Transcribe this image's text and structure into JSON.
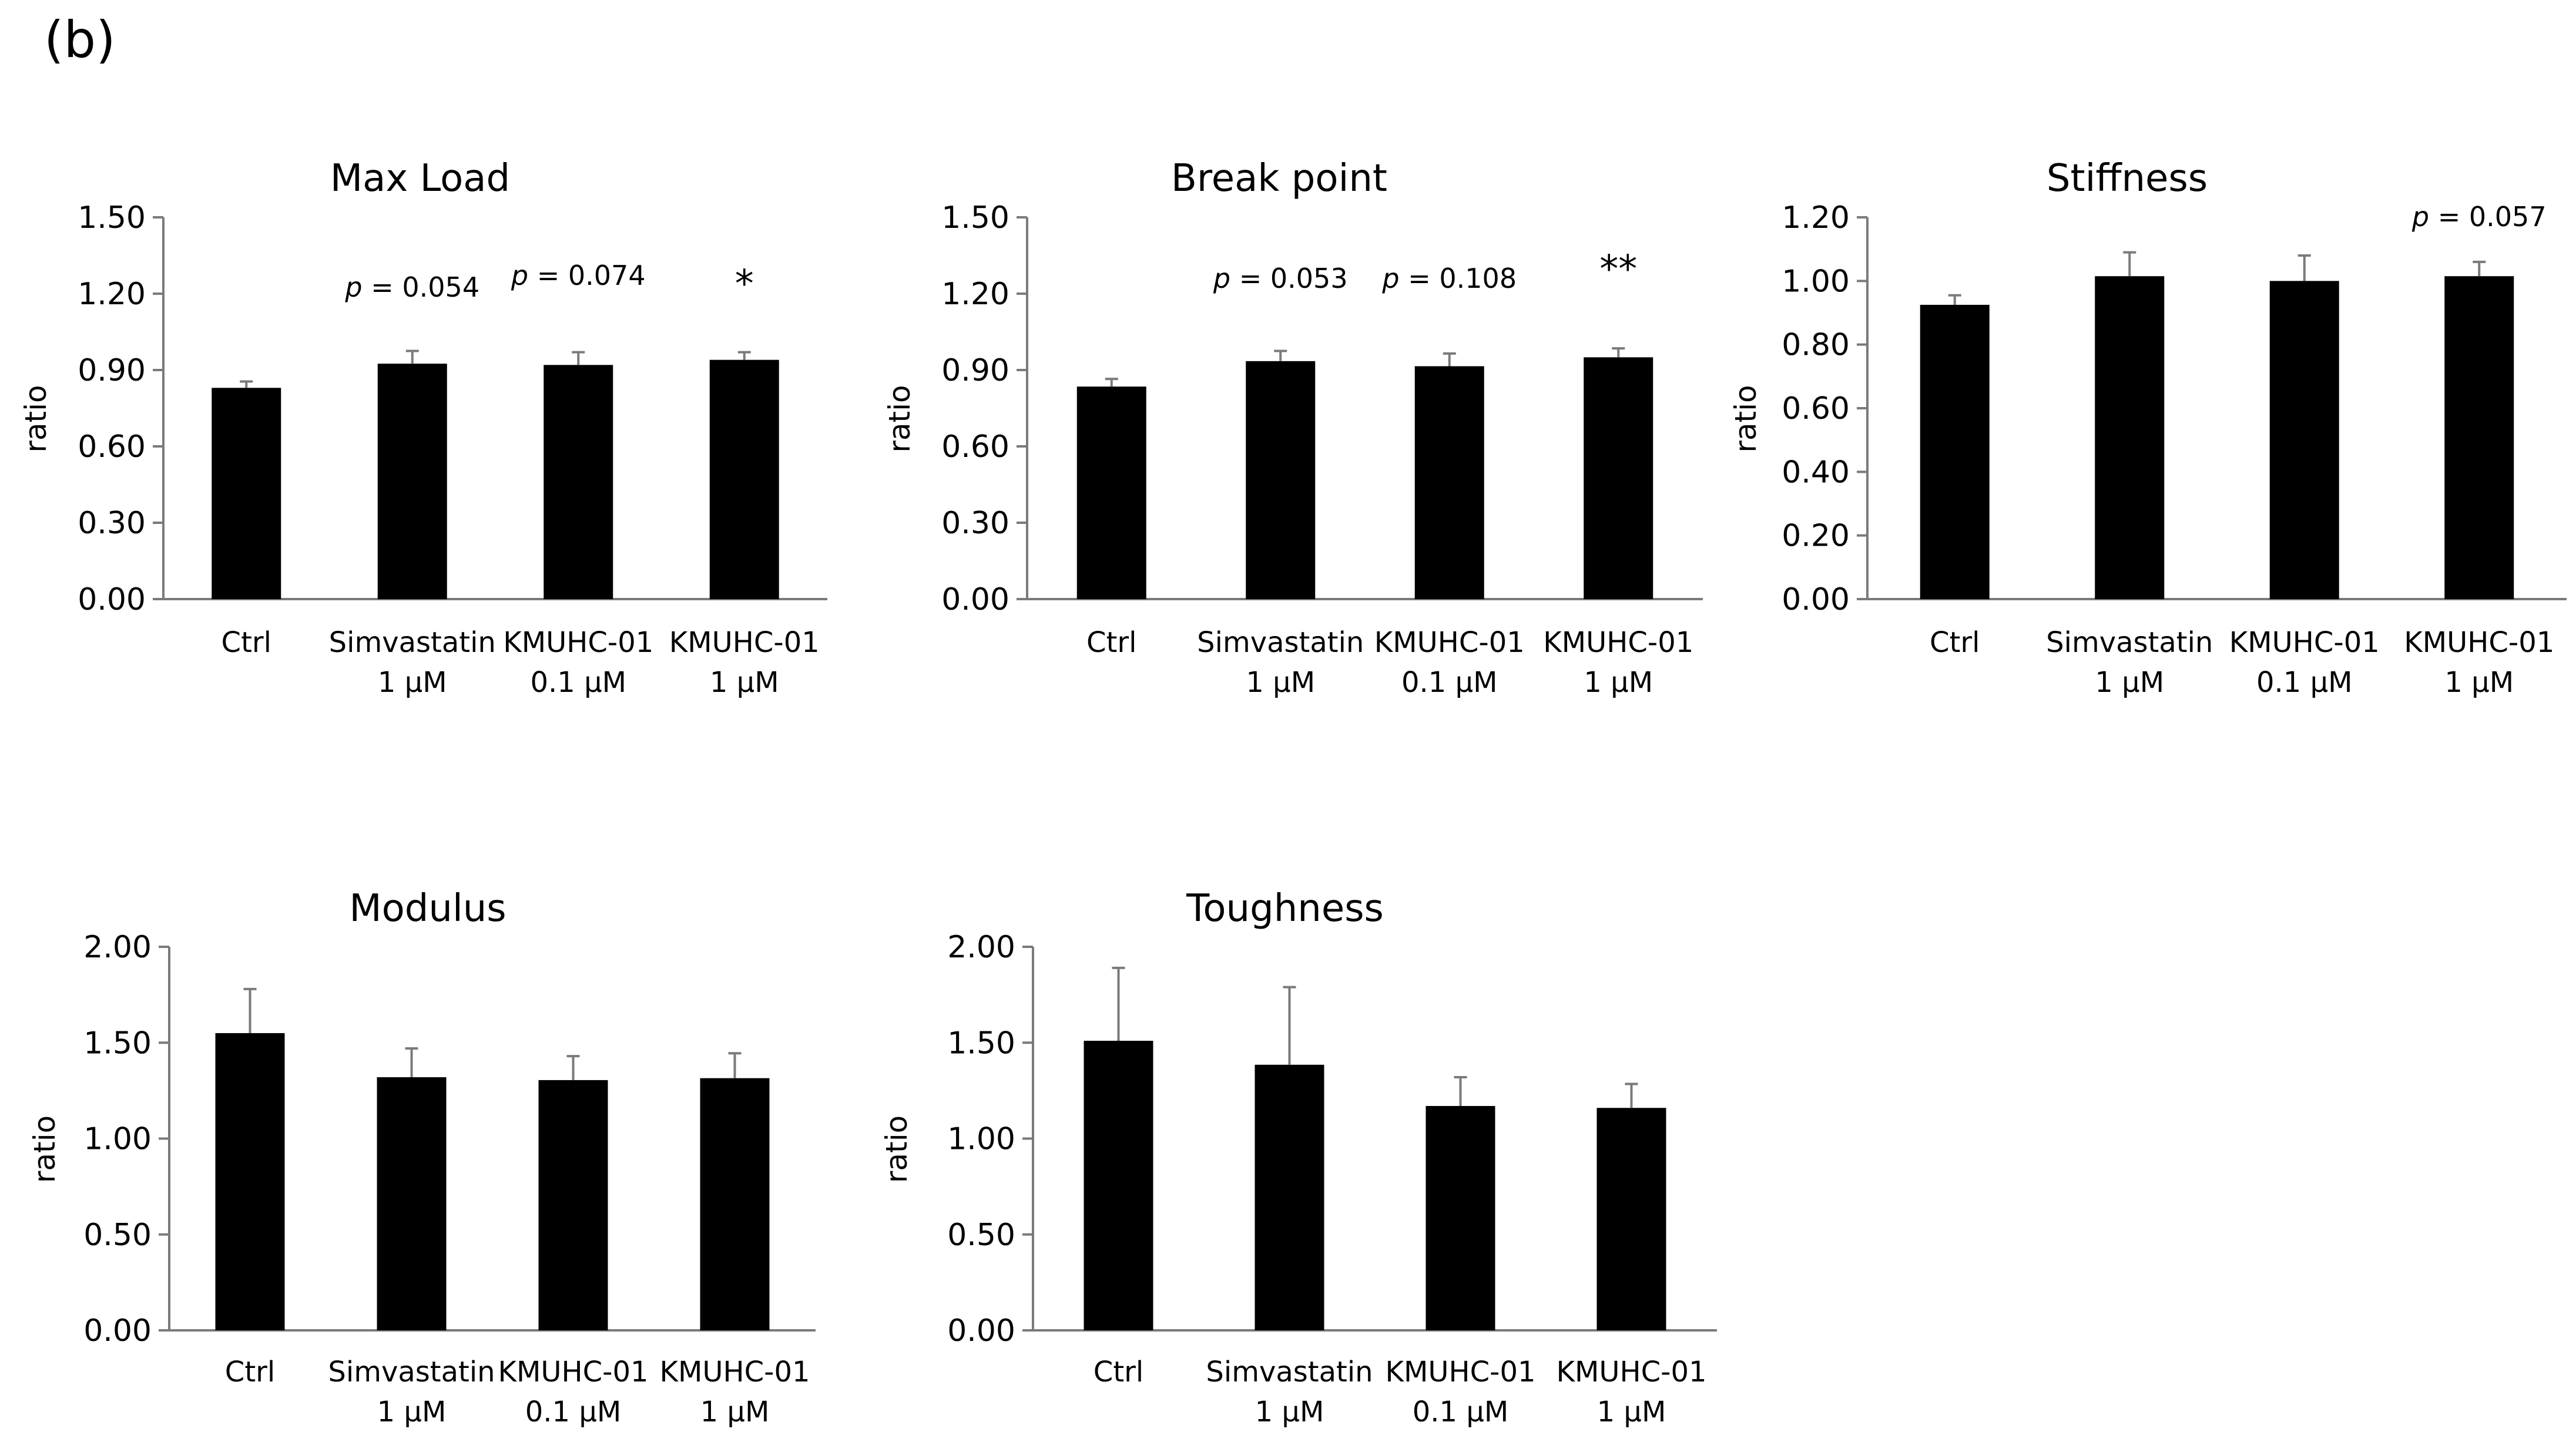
{
  "figure": {
    "panel_label": "(b)"
  },
  "chart_data": [
    {
      "type": "bar",
      "title": "Max Load",
      "ylabel": "ratio",
      "ylim": [
        0,
        1.5
      ],
      "yticks": [
        "0.00",
        "0.30",
        "0.60",
        "0.90",
        "1.20",
        "1.50"
      ],
      "categories": [
        [
          "Ctrl"
        ],
        [
          "Simvastatin",
          "1 μM"
        ],
        [
          "KMUHC-01",
          "0.1 μM"
        ],
        [
          "KMUHC-01",
          "1 μM"
        ]
      ],
      "values": [
        0.83,
        0.925,
        0.92,
        0.94
      ],
      "errors": [
        0.025,
        0.05,
        0.05,
        0.03
      ],
      "annotations": [
        null,
        {
          "p": "p",
          "rest": " = 0.054"
        },
        {
          "p": "p",
          "rest": " = 0.074"
        },
        {
          "text": "*"
        }
      ]
    },
    {
      "type": "bar",
      "title": "Break point",
      "ylabel": "ratio",
      "ylim": [
        0,
        1.5
      ],
      "yticks": [
        "0.00",
        "0.30",
        "0.60",
        "0.90",
        "1.20",
        "1.50"
      ],
      "categories": [
        [
          "Ctrl"
        ],
        [
          "Simvastatin",
          "1 μM"
        ],
        [
          "KMUHC-01",
          "0.1 μM"
        ],
        [
          "KMUHC-01",
          "1 μM"
        ]
      ],
      "values": [
        0.835,
        0.935,
        0.915,
        0.95
      ],
      "errors": [
        0.03,
        0.04,
        0.05,
        0.035
      ],
      "annotations": [
        null,
        {
          "p": "p",
          "rest": " = 0.053"
        },
        {
          "p": "p",
          "rest": " = 0.108"
        },
        {
          "text": "**"
        }
      ]
    },
    {
      "type": "bar",
      "title": "Stiffness",
      "ylabel": "ratio",
      "ylim": [
        0,
        1.2
      ],
      "yticks": [
        "0.00",
        "0.20",
        "0.40",
        "0.60",
        "0.80",
        "1.00",
        "1.20"
      ],
      "categories": [
        [
          "Ctrl"
        ],
        [
          "Simvastatin",
          "1 μM"
        ],
        [
          "KMUHC-01",
          "0.1 μM"
        ],
        [
          "KMUHC-01",
          "1 μM"
        ]
      ],
      "values": [
        0.925,
        1.015,
        1.0,
        1.015
      ],
      "errors": [
        0.03,
        0.075,
        0.08,
        0.045
      ],
      "annotations": [
        null,
        null,
        null,
        {
          "p": "p",
          "rest": " = 0.057"
        }
      ]
    },
    {
      "type": "bar",
      "title": "Modulus",
      "ylabel": "ratio",
      "ylim": [
        0,
        2.0
      ],
      "yticks": [
        "0.00",
        "0.50",
        "1.00",
        "1.50",
        "2.00"
      ],
      "categories": [
        [
          "Ctrl"
        ],
        [
          "Simvastatin",
          "1 μM"
        ],
        [
          "KMUHC-01",
          "0.1 μM"
        ],
        [
          "KMUHC-01",
          "1 μM"
        ]
      ],
      "values": [
        1.55,
        1.32,
        1.305,
        1.315
      ],
      "errors": [
        0.23,
        0.15,
        0.125,
        0.13
      ],
      "annotations": [
        null,
        null,
        null,
        null
      ]
    },
    {
      "type": "bar",
      "title": "Toughness",
      "ylabel": "ratio",
      "ylim": [
        0,
        2.0
      ],
      "yticks": [
        "0.00",
        "0.50",
        "1.00",
        "1.50",
        "2.00"
      ],
      "categories": [
        [
          "Ctrl"
        ],
        [
          "Simvastatin",
          "1 μM"
        ],
        [
          "KMUHC-01",
          "0.1 μM"
        ],
        [
          "KMUHC-01",
          "1 μM"
        ]
      ],
      "values": [
        1.51,
        1.385,
        1.17,
        1.16
      ],
      "errors": [
        0.38,
        0.405,
        0.15,
        0.125
      ],
      "annotations": [
        null,
        null,
        null,
        null
      ]
    }
  ]
}
